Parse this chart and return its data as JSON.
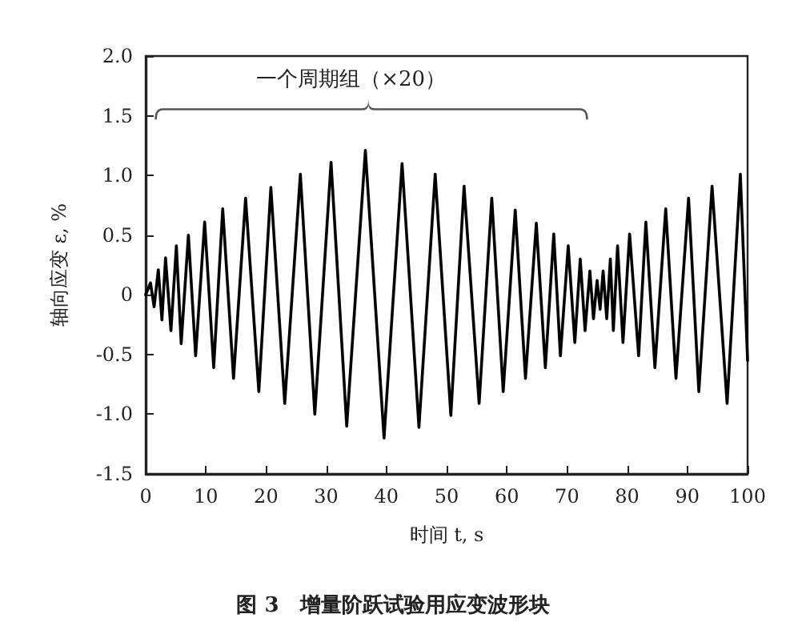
{
  "chart_data": {
    "type": "line",
    "xlabel": "时间 t, s",
    "ylabel": "轴向应变 ε, %",
    "annotations": [
      "一个周期组（×20）",
      "图 3　增量阶跃试验用应变波形块"
    ],
    "x": [
      0,
      0.8,
      1.4,
      2.1,
      2.7,
      3.3,
      4.2,
      5.1,
      5.9,
      7.1,
      8.3,
      9.8,
      11.3,
      12.8,
      14.6,
      16.6,
      18.8,
      20.8,
      23.1,
      25.7,
      28.1,
      30.8,
      33.4,
      36.5,
      39.6,
      42.6,
      45.4,
      48.1,
      50.7,
      52.9,
      55.4,
      57.5,
      59.4,
      61.4,
      63.1,
      64.9,
      66.4,
      67.8,
      68.9,
      70.2,
      71.3,
      72.2,
      73.0,
      73.8,
      74.4,
      75.0,
      75.5,
      76.0,
      76.6,
      77.2,
      77.7,
      78.4,
      79.3,
      80.4,
      81.9,
      83.1,
      84.6,
      86.4,
      88.1,
      90.2,
      91.9,
      94.1,
      96.6,
      98.8,
      100
    ],
    "series": [
      {
        "color": "#000000",
        "values": [
          0,
          0.1,
          -0.1,
          0.21,
          -0.21,
          0.31,
          -0.3,
          0.41,
          -0.41,
          0.5,
          -0.51,
          0.61,
          -0.61,
          0.72,
          -0.7,
          0.81,
          -0.81,
          0.9,
          -0.91,
          1.01,
          -1.0,
          1.11,
          -1.1,
          1.21,
          -1.2,
          1.1,
          -1.11,
          1.01,
          -1.01,
          0.91,
          -0.91,
          0.81,
          -0.81,
          0.71,
          -0.7,
          0.6,
          -0.61,
          0.51,
          -0.51,
          0.41,
          -0.4,
          0.3,
          -0.3,
          0.2,
          -0.2,
          0.12,
          -0.12,
          0.2,
          -0.2,
          0.3,
          -0.3,
          0.41,
          -0.4,
          0.51,
          -0.51,
          0.61,
          -0.61,
          0.72,
          -0.7,
          0.81,
          -0.81,
          0.91,
          -0.91,
          1.01,
          -0.55
        ]
      }
    ],
    "xlim": [
      0,
      100
    ],
    "xticks": [
      0,
      10,
      20,
      30,
      40,
      50,
      60,
      70,
      80,
      90,
      100
    ],
    "ylim": [
      -1.5,
      2.0
    ],
    "yticks": [
      {
        "value": -1.5,
        "label": "-1.5"
      },
      {
        "value": -1,
        "label": "-1.0"
      },
      {
        "value": -0.5,
        "label": "-0.5"
      },
      0,
      0.5,
      {
        "value": 1,
        "label": "1.0"
      },
      1.5,
      {
        "value": 2,
        "label": "2.0"
      }
    ],
    "grid": false,
    "marker": "none",
    "line_style": "solid"
  }
}
